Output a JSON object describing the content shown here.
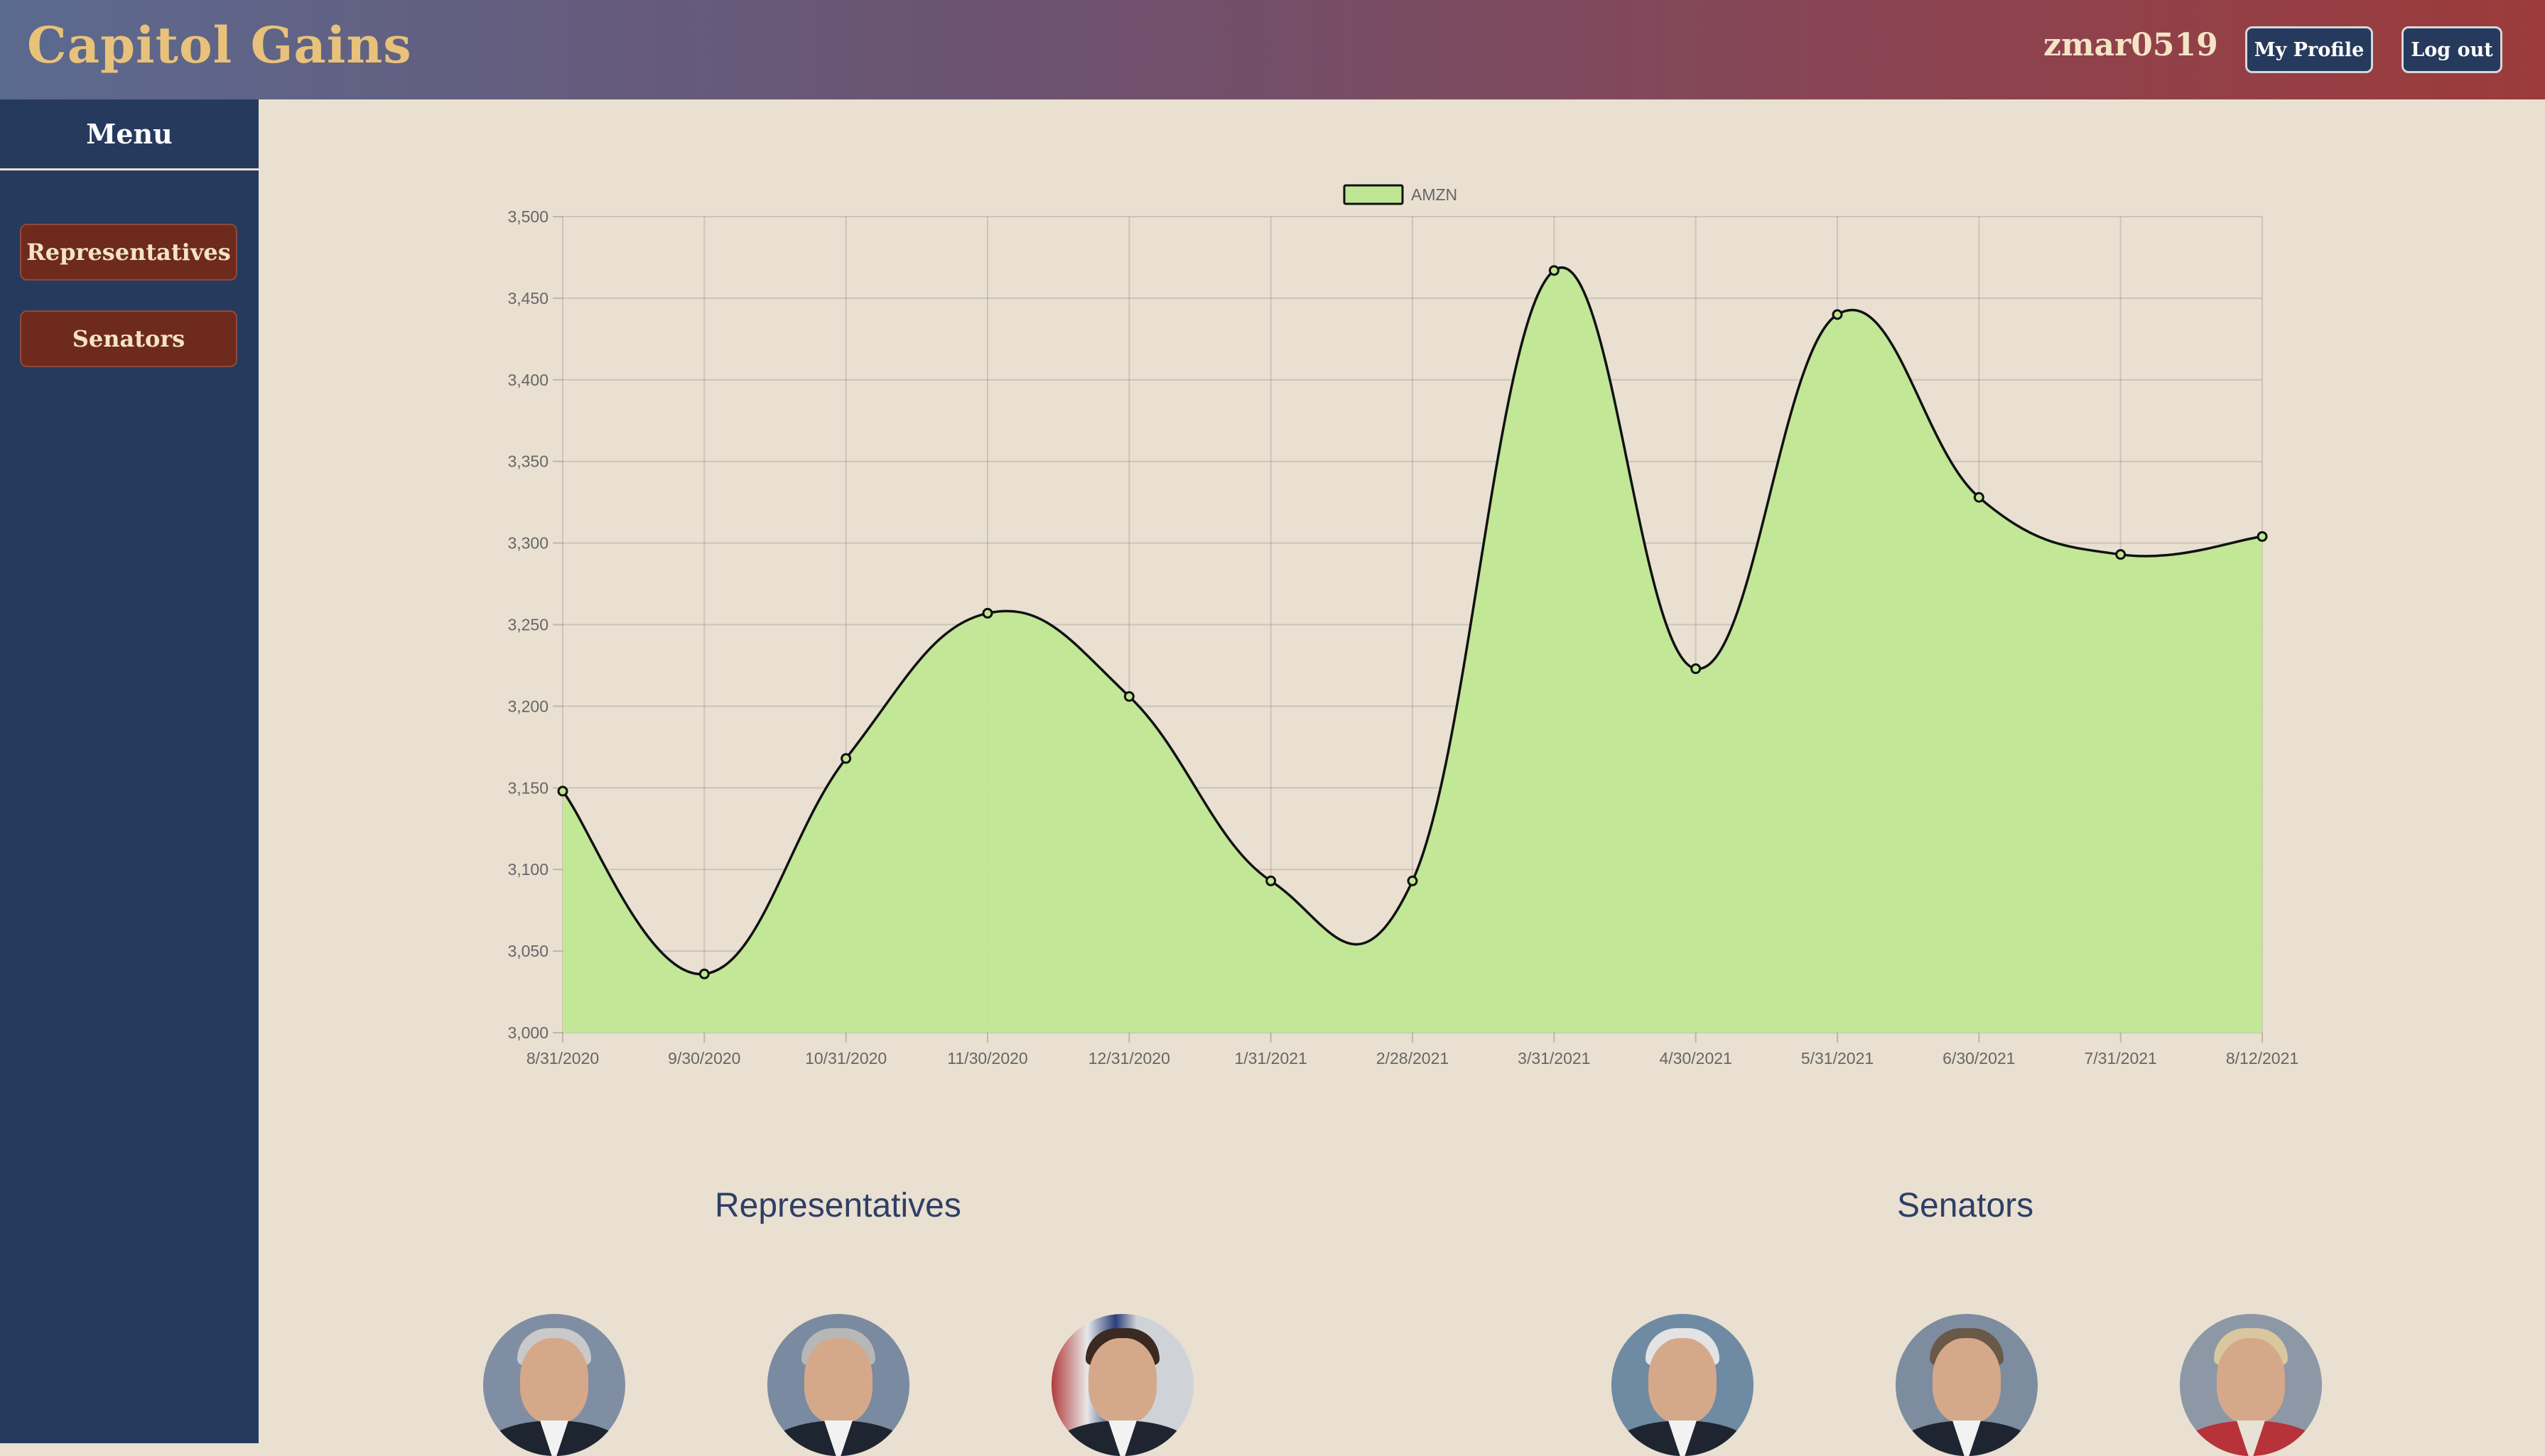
{
  "header": {
    "brand": "Capitol Gains",
    "username": "zmar0519",
    "my_profile_label": "My Profile",
    "logout_label": "Log out"
  },
  "sidebar": {
    "title": "Menu",
    "items": [
      {
        "label": "Representatives"
      },
      {
        "label": "Senators"
      }
    ]
  },
  "colors": {
    "area_fill": "#bfe793",
    "line": "#111111",
    "sidebar": "#263a5e",
    "button_red": "#6e2a1d"
  },
  "chart_data": {
    "type": "area",
    "legend_position": "top-center",
    "grid": true,
    "categories": [
      "8/31/2020",
      "9/30/2020",
      "10/31/2020",
      "11/30/2020",
      "12/31/2020",
      "1/31/2021",
      "2/28/2021",
      "3/31/2021",
      "4/30/2021",
      "5/31/2021",
      "6/30/2021",
      "7/31/2021",
      "8/12/2021"
    ],
    "series": [
      {
        "name": "AMZN",
        "values": [
          3148,
          3036,
          3168,
          3257,
          3206,
          3093,
          3093,
          3467,
          3223,
          3440,
          3328,
          3293,
          3304
        ]
      }
    ],
    "ylim": [
      3000,
      3500
    ],
    "yticks": [
      "3,000",
      "3,050",
      "3,100",
      "3,150",
      "3,200",
      "3,250",
      "3,300",
      "3,350",
      "3,400",
      "3,450",
      "3,500"
    ]
  },
  "sections": {
    "representatives_title": "Representatives",
    "senators_title": "Senators"
  },
  "portraits": {
    "representatives": [
      "portrait-1",
      "portrait-2",
      "portrait-3"
    ],
    "senators": [
      "portrait-1",
      "portrait-2",
      "portrait-3"
    ]
  }
}
